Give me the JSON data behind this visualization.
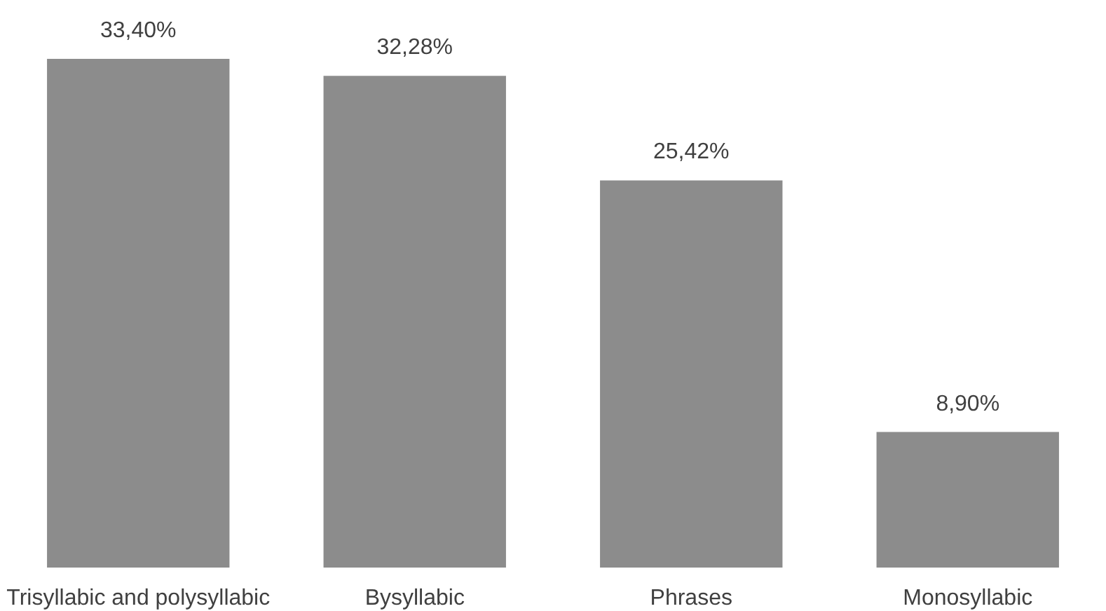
{
  "chart_data": {
    "type": "bar",
    "categories": [
      "Trisyllabic and polysyllabic",
      "Bysyllabic",
      "Phrases",
      "Monosyllabic"
    ],
    "values": [
      33.4,
      32.28,
      25.42,
      8.9
    ],
    "value_labels": [
      "33,40%",
      "32,28%",
      "25,42%",
      "8,90%"
    ],
    "color": "#8c8c8c"
  }
}
